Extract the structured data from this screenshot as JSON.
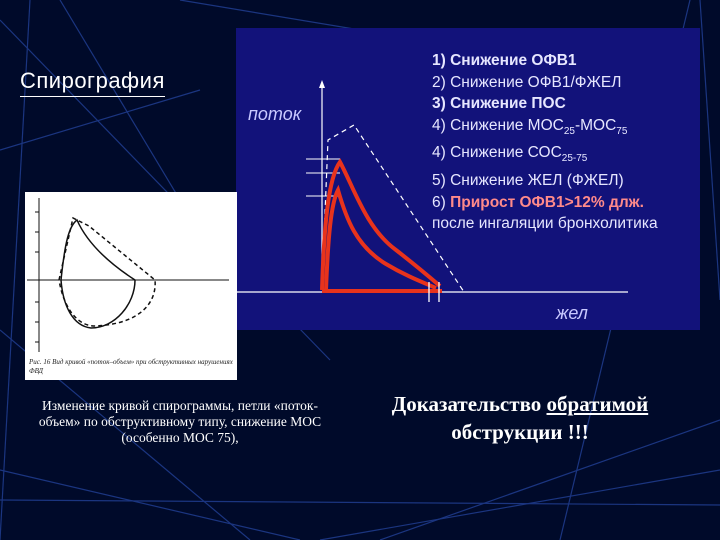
{
  "slide": {
    "title": "Спирография",
    "colors": {
      "background": "#000a2a",
      "panel": "#12127a",
      "curve": "#e8331c"
    }
  },
  "panel": {
    "y_label": "поток",
    "x_label": "жел",
    "criteria": [
      {
        "num": "1)",
        "text": "Снижение ОФВ1",
        "bold": true
      },
      {
        "num": "2)",
        "text": "Снижение ОФВ1/ФЖЕЛ",
        "bold": false
      },
      {
        "num": "3)",
        "text": "Снижение ПОС",
        "bold": true
      },
      {
        "num": "4)",
        "text": "Снижение МОС",
        "sub1": "25",
        "mid": "-МОС",
        "sub2": "75",
        "bold": false
      },
      {
        "num": "4)",
        "text": "Снижение СОС",
        "sub1": "25-75",
        "bold": false
      },
      {
        "num": "5)",
        "text": "Снижение ЖЕЛ (ФЖЕЛ)",
        "bold": false
      },
      {
        "num": "6)",
        "text": "Прирост ОФВ1>12% длж.",
        "bold": true,
        "highlight": true
      },
      {
        "num": "",
        "text": "после ингаляции бронхолитика",
        "bold": false
      }
    ]
  },
  "loop_figure": {
    "caption": "Рис. 16 Вид кривой «поток–объем» при обструктивных нарушениях ФВД"
  },
  "left_caption": "Изменение кривой спирограммы, петли «поток-объем» по обструктивному типу, снижение МОС (особенно МОС 75),",
  "conclusion": {
    "line1_prefix": "Доказательство ",
    "line1_underlined": "обратимой ",
    "line2": "обструкции !!!"
  }
}
